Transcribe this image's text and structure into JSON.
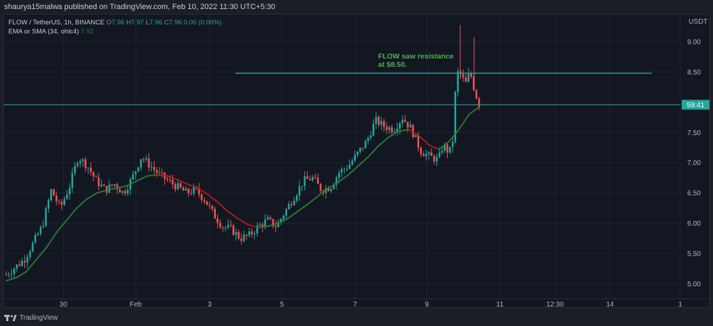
{
  "header": {
    "publisher": "shaurya15malwa published on TradingView.com, Feb 10, 2022 11:30 UTC+5:30"
  },
  "legend": {
    "symbol": "FLOW / TetherUS, 1h, BINANCE",
    "ohlc": [
      {
        "k": "O",
        "v": "7.96"
      },
      {
        "k": "H",
        "v": "7.97"
      },
      {
        "k": "L",
        "v": "7.96"
      },
      {
        "k": "C",
        "v": "7.96"
      }
    ],
    "change": "0.00 (0.00%)",
    "ema_label": "EMA or SMA (34, ohlc4)",
    "ema_value": "7.92"
  },
  "footer": {
    "brand": "TradingView"
  },
  "colors": {
    "up": "#26a69a",
    "down": "#ef5350",
    "ema_up": "#2e7d32",
    "ema_down": "#b71c1c",
    "resistance": "#26a69a",
    "annotation": "#4caf50",
    "price_line": "#26a69a"
  },
  "chart_data": {
    "type": "candlestick",
    "currency_label": "USDT",
    "ylim": [
      4.75,
      9.45
    ],
    "y_ticks": [
      "5.00",
      "5.50",
      "6.00",
      "6.50",
      "7.00",
      "7.50",
      "8.00",
      "8.50",
      "9.00"
    ],
    "x_ticks": [
      "30",
      "Feb",
      "3",
      "5",
      "7",
      "9",
      "11",
      "12:30",
      "14",
      "1"
    ],
    "current_price": 7.96,
    "countdown": "59:41",
    "annotation": {
      "lines": [
        "FLOW saw resistance",
        "at $8.50."
      ]
    },
    "resistance_level": 8.48,
    "close_path": [
      [
        0,
        5.15
      ],
      [
        4,
        5.4
      ],
      [
        8,
        5.95
      ],
      [
        10,
        6.55
      ],
      [
        12,
        6.25
      ],
      [
        14,
        6.6
      ],
      [
        16,
        7.1
      ],
      [
        18,
        6.95
      ],
      [
        20,
        6.7
      ],
      [
        22,
        6.55
      ],
      [
        24,
        6.65
      ],
      [
        26,
        6.5
      ],
      [
        28,
        6.75
      ],
      [
        30,
        7.1
      ],
      [
        32,
        6.95
      ],
      [
        34,
        6.8
      ],
      [
        36,
        6.7
      ],
      [
        38,
        6.6
      ],
      [
        40,
        6.5
      ],
      [
        42,
        6.55
      ],
      [
        44,
        6.4
      ],
      [
        46,
        6.15
      ],
      [
        48,
        5.95
      ],
      [
        50,
        5.9
      ],
      [
        52,
        5.75
      ],
      [
        54,
        5.8
      ],
      [
        56,
        5.95
      ],
      [
        58,
        6.05
      ],
      [
        60,
        5.95
      ],
      [
        62,
        6.2
      ],
      [
        64,
        6.45
      ],
      [
        66,
        6.7
      ],
      [
        68,
        6.75
      ],
      [
        70,
        6.55
      ],
      [
        72,
        6.6
      ],
      [
        74,
        6.85
      ],
      [
        76,
        6.95
      ],
      [
        78,
        7.15
      ],
      [
        80,
        7.35
      ],
      [
        82,
        7.7
      ],
      [
        84,
        7.6
      ],
      [
        86,
        7.55
      ],
      [
        88,
        7.75
      ],
      [
        90,
        7.55
      ],
      [
        92,
        7.2
      ],
      [
        94,
        7.1
      ],
      [
        96,
        7.05
      ],
      [
        97,
        7.3
      ],
      [
        98,
        7.2
      ],
      [
        99,
        7.2
      ],
      [
        100,
        8.5
      ],
      [
        101,
        8.45
      ],
      [
        102,
        8.3
      ],
      [
        103,
        8.5
      ],
      [
        104,
        8.2
      ],
      [
        105,
        7.96
      ]
    ],
    "ema": [
      5.05,
      5.1,
      5.2,
      5.4,
      5.6,
      5.85,
      6.05,
      6.25,
      6.4,
      6.5,
      6.55,
      6.58,
      6.62,
      6.7,
      6.78,
      6.8,
      6.78,
      6.72,
      6.65,
      6.58,
      6.48,
      6.35,
      6.2,
      6.08,
      5.98,
      5.93,
      5.95,
      6.0,
      6.08,
      6.2,
      6.32,
      6.45,
      6.58,
      6.68,
      6.8,
      6.95,
      7.1,
      7.28,
      7.42,
      7.52,
      7.55,
      7.45,
      7.3,
      7.22,
      7.35,
      7.55,
      7.8,
      7.92
    ]
  }
}
